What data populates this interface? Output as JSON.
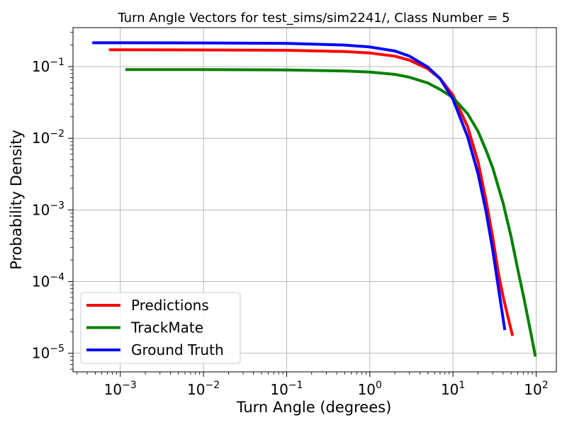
{
  "chart_data": {
    "type": "line",
    "title": "Turn Angle Vectors for test_sims/sim2241/, Class Number = 5",
    "xlabel": "Turn Angle (degrees)",
    "ylabel": "Probability Density",
    "xscale": "log",
    "yscale": "log",
    "xlim": [
      0.00027,
      175
    ],
    "ylim": [
      5.5e-06,
      0.35
    ],
    "grid": true,
    "legend_position": "lower-left",
    "x_ticks": [
      {
        "value": 0.001,
        "base": "10",
        "exp": "−3"
      },
      {
        "value": 0.01,
        "base": "10",
        "exp": "−2"
      },
      {
        "value": 0.1,
        "base": "10",
        "exp": "−1"
      },
      {
        "value": 1,
        "base": "10",
        "exp": "0"
      },
      {
        "value": 10,
        "base": "10",
        "exp": "1"
      },
      {
        "value": 100,
        "base": "10",
        "exp": "2"
      }
    ],
    "y_ticks": [
      {
        "value": 1e-05,
        "base": "10",
        "exp": "−5"
      },
      {
        "value": 0.0001,
        "base": "10",
        "exp": "−4"
      },
      {
        "value": 0.001,
        "base": "10",
        "exp": "−3"
      },
      {
        "value": 0.01,
        "base": "10",
        "exp": "−2"
      },
      {
        "value": 0.1,
        "base": "10",
        "exp": "−1"
      }
    ],
    "series": [
      {
        "name": "Predictions",
        "color": "#ff0000",
        "x": [
          0.00073,
          0.001,
          0.01,
          0.1,
          0.5,
          1,
          2,
          3,
          5,
          7,
          10,
          15,
          20,
          25,
          30,
          35,
          40,
          45,
          52
        ],
        "y": [
          0.172,
          0.172,
          0.171,
          0.169,
          0.162,
          0.155,
          0.14,
          0.123,
          0.093,
          0.068,
          0.04,
          0.0145,
          0.0047,
          0.00135,
          0.00042,
          0.000135,
          6.2e-05,
          3.5e-05,
          1.75e-05
        ]
      },
      {
        "name": "TrackMate",
        "color": "#008000",
        "x": [
          0.00115,
          0.01,
          0.1,
          0.5,
          1,
          2,
          3,
          5,
          7,
          10,
          15,
          20,
          25,
          30,
          40,
          50,
          60,
          70,
          80,
          90,
          98
        ],
        "y": [
          0.091,
          0.091,
          0.09,
          0.087,
          0.084,
          0.078,
          0.071,
          0.059,
          0.048,
          0.037,
          0.022,
          0.0125,
          0.0068,
          0.0039,
          0.00125,
          0.00042,
          0.00015,
          6.5e-05,
          3e-05,
          1.5e-05,
          9e-06
        ]
      },
      {
        "name": "Ground Truth",
        "color": "#0000ff",
        "x": [
          0.00046,
          0.001,
          0.01,
          0.1,
          0.5,
          1,
          2,
          3,
          5,
          7,
          10,
          15,
          20,
          25,
          30,
          35,
          42
        ],
        "y": [
          0.215,
          0.215,
          0.214,
          0.211,
          0.2,
          0.188,
          0.165,
          0.14,
          0.098,
          0.068,
          0.035,
          0.0105,
          0.0032,
          0.00095,
          0.00028,
          8.5e-05,
          2.1e-05
        ]
      }
    ]
  }
}
